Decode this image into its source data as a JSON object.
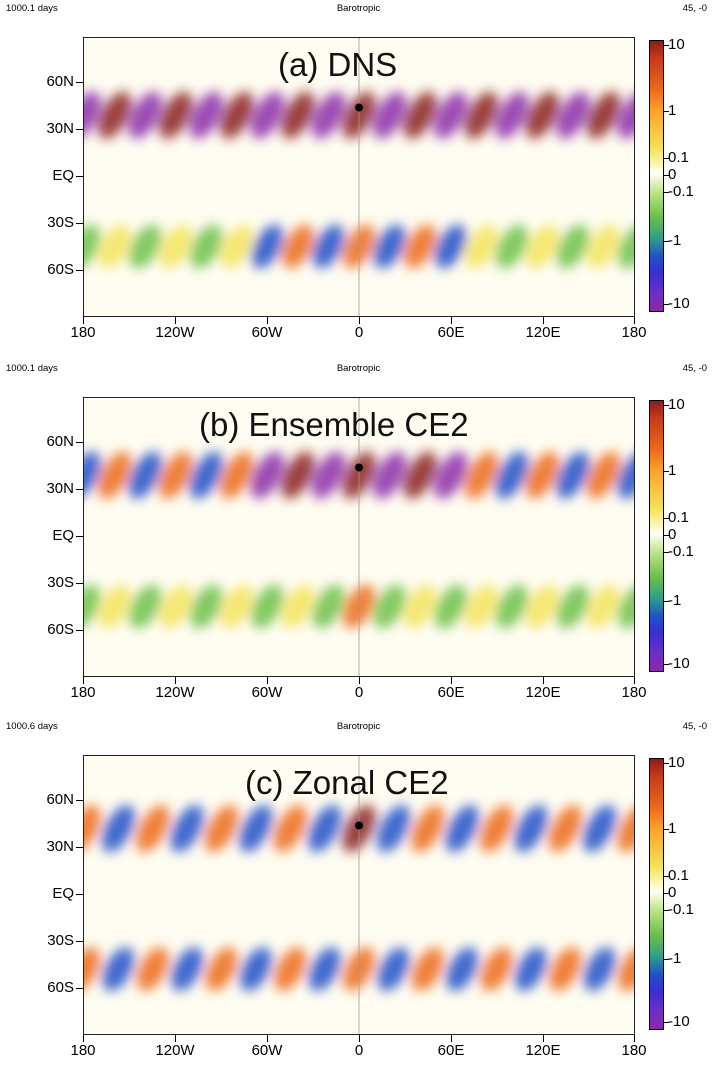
{
  "colorbar": {
    "labels": [
      "10",
      "1",
      "0.1",
      "0",
      "-0.1",
      "-1",
      "-10"
    ],
    "colors": [
      "#8a1c1c",
      "#ec6a1a",
      "#f3e35a",
      "#ffffff",
      "#6dc048",
      "#1e50c8",
      "#8b2aa8"
    ]
  },
  "axes": {
    "y_ticks": [
      "60N",
      "30N",
      "EQ",
      "30S",
      "60S"
    ],
    "x_ticks": [
      "180",
      "120W",
      "60W",
      "0",
      "60E",
      "120E",
      "180"
    ]
  },
  "panels": [
    {
      "days": "1000.1 days",
      "field": "Barotropic",
      "coords": "45, -0",
      "title": "(a) DNS"
    },
    {
      "days": "1000.1 days",
      "field": "Barotropic",
      "coords": "45, -0",
      "title": "(b) Ensemble CE2"
    },
    {
      "days": "1000.6 days",
      "field": "Barotropic",
      "coords": "45, -0",
      "title": "(c) Zonal CE2"
    }
  ],
  "chart_data": [
    {
      "type": "heatmap",
      "title": "(a) DNS",
      "header": [
        "1000.1 days",
        "Barotropic",
        "45, -0"
      ],
      "x_ticks": [
        "180",
        "120W",
        "60W",
        "0",
        "60E",
        "120E",
        "180"
      ],
      "y_ticks": [
        "60N",
        "30N",
        "EQ",
        "30S",
        "60S"
      ],
      "xlim": [
        -180,
        180
      ],
      "ylim": [
        -90,
        90
      ],
      "colorbar_ticks": [
        10,
        1,
        0.1,
        0,
        -0.1,
        -1,
        -10
      ],
      "marker": {
        "lon": 0,
        "lat": 45
      },
      "pattern": {
        "north_band_lat": 40,
        "south_band_lat": -45,
        "north_max": 8,
        "south_max": 0.8,
        "wave_number": 9,
        "peak_lon": 0
      }
    },
    {
      "type": "heatmap",
      "title": "(b) Ensemble CE2",
      "header": [
        "1000.1 days",
        "Barotropic",
        "45, -0"
      ],
      "x_ticks": [
        "180",
        "120W",
        "60W",
        "0",
        "60E",
        "120E",
        "180"
      ],
      "y_ticks": [
        "60N",
        "30N",
        "EQ",
        "30S",
        "60S"
      ],
      "xlim": [
        -180,
        180
      ],
      "ylim": [
        -90,
        90
      ],
      "colorbar_ticks": [
        10,
        1,
        0.1,
        0,
        -0.1,
        -1,
        -10
      ],
      "marker": {
        "lon": 0,
        "lat": 45
      },
      "pattern": {
        "north_band_lat": 40,
        "south_band_lat": -45,
        "north_max": 4,
        "south_max": 0.6,
        "wave_number": 9,
        "peak_lon": 0
      }
    },
    {
      "type": "heatmap",
      "title": "(c) Zonal CE2",
      "header": [
        "1000.6 days",
        "Barotropic",
        "45, -0"
      ],
      "x_ticks": [
        "180",
        "120W",
        "60W",
        "0",
        "60E",
        "120E",
        "180"
      ],
      "y_ticks": [
        "60N",
        "30N",
        "EQ",
        "30S",
        "60S"
      ],
      "xlim": [
        -180,
        180
      ],
      "ylim": [
        -90,
        90
      ],
      "colorbar_ticks": [
        10,
        1,
        0.1,
        0,
        -0.1,
        -1,
        -10
      ],
      "marker": {
        "lon": 0,
        "lat": 45
      },
      "pattern": {
        "north_band_lat": 43,
        "south_band_lat": -48,
        "north_max": 3,
        "south_max": 1.5,
        "wave_number": 8,
        "peak_lon": 0
      }
    }
  ]
}
